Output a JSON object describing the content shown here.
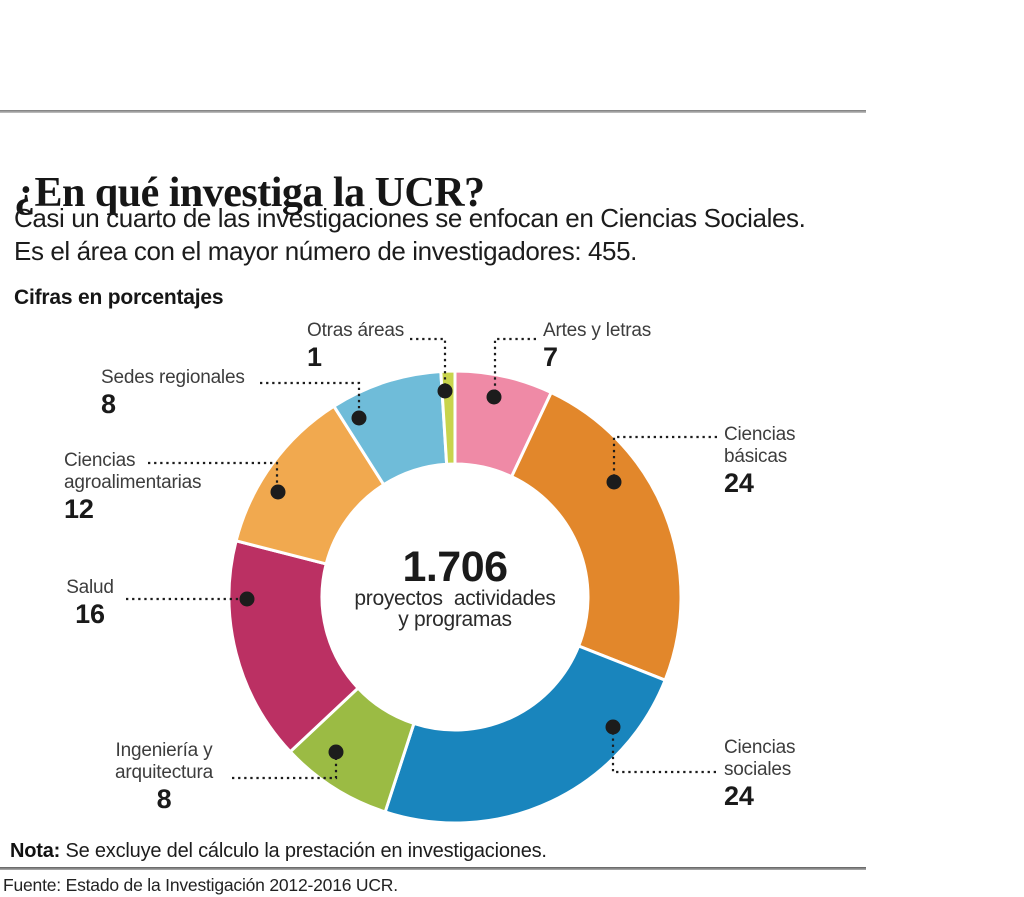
{
  "header": {
    "title": "¿En qué investiga la UCR?",
    "subtitle_line1": "Casi un cuarto de las investigaciones se enfocan en Ciencias Sociales.",
    "subtitle_line2": "Es el área con el mayor número de investigadores: 455.",
    "kicker": "Cifras en porcentajes"
  },
  "chart_data": {
    "type": "pie",
    "variant": "donut",
    "unit": "percent",
    "title": "Cifras en porcentajes",
    "start_angle_deg": 0,
    "direction": "clockwise",
    "center_label": {
      "value": "1.706",
      "line1": "proyectos  actividades",
      "line2": "y programas"
    },
    "segments": [
      {
        "label": "Artes y letras",
        "value": 7,
        "color": "#EF8AA6"
      },
      {
        "label": "Ciencias básicas",
        "value": 24,
        "color": "#E2872B"
      },
      {
        "label": "Ciencias sociales",
        "value": 24,
        "color": "#1985BD"
      },
      {
        "label": "Ingeniería y arquitectura",
        "value": 8,
        "color": "#9BBB44"
      },
      {
        "label": "Salud",
        "value": 16,
        "color": "#BB3063"
      },
      {
        "label": "Ciencias agroalimentarias",
        "value": 12,
        "color": "#F1A94F"
      },
      {
        "label": "Sedes regionales",
        "value": 8,
        "color": "#6FBCD9"
      },
      {
        "label": "Otras áreas",
        "value": 1,
        "color": "#C8D44C"
      }
    ]
  },
  "footer": {
    "note_label": "Nota:",
    "note_text": "Se excluye del cálculo la prestación en investigaciones.",
    "source": "Fuente: Estado de la Investigación 2012-2016 UCR."
  }
}
